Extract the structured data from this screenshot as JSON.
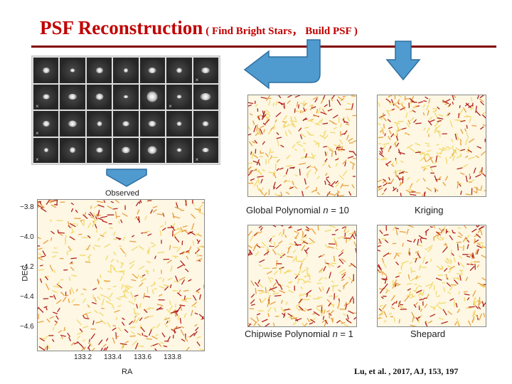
{
  "slide": {
    "title_main": "PSF Reconstruction",
    "title_sub": "( Find Bright Stars， Build PSF )",
    "citation": "Lu, et al. , 2017, AJ, 153, 197"
  },
  "star_stamps": {
    "rows": 4,
    "cols": 7,
    "marked_cells": [
      6,
      7,
      12,
      14,
      21,
      27
    ]
  },
  "observed_panel": {
    "title": "Observed",
    "xlabel": "RA",
    "ylabel": "DEC",
    "x_ticks": [
      "133.2",
      "133.4",
      "133.6",
      "133.8"
    ],
    "y_ticks": [
      "−3.8",
      "−4.0",
      "−4.2",
      "−4.4",
      "−4.6"
    ]
  },
  "model_panels": [
    {
      "caption_prefix": "Global Polynomial ",
      "caption_var": "n",
      "caption_suffix": " = 10"
    },
    {
      "caption_prefix": "Kriging",
      "caption_var": "",
      "caption_suffix": ""
    },
    {
      "caption_prefix": "Chipwise Polynomial ",
      "caption_var": "n",
      "caption_suffix": " = 1"
    },
    {
      "caption_prefix": "Shepard",
      "caption_var": "",
      "caption_suffix": ""
    }
  ],
  "colors": {
    "title": "#c00000",
    "rule": "#800000",
    "arrow_fill": "#4f9bd0",
    "arrow_stroke": "#2f6f9f",
    "whisker_light": "#f2d96a",
    "whisker_mid": "#e8a040",
    "whisker_dark": "#b22222"
  }
}
